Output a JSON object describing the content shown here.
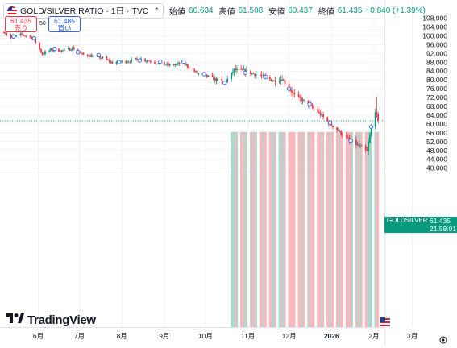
{
  "header": {
    "title": "GOLD/SILVER RATIO · 1日 · TVC",
    "open_label": "始値",
    "open_value": "60.634",
    "high_label": "高値",
    "high_value": "61.508",
    "low_label": "安値",
    "low_value": "60.437",
    "close_label": "終値",
    "close_value": "61.435",
    "change_value": "+0.840 (+1.39%)"
  },
  "trade": {
    "sell_price": "61.435",
    "sell_label": "売り",
    "spread": "50",
    "buy_price": "61.485",
    "buy_label": "買い"
  },
  "last_price": {
    "symbol": "GOLDSILVER",
    "value": "61.435",
    "countdown": "21:58:01"
  },
  "logo": "TradingView",
  "colors": {
    "up": "#089981",
    "down": "#f23645",
    "accent": "#2962ff"
  },
  "icons": [
    "us-flag-icon",
    "collapse-chevron-icon",
    "tradingview-logo-icon",
    "settings-gear-icon"
  ],
  "chart_data": {
    "type": "candlestick",
    "x_tick_labels": [
      "6月",
      "7月",
      "8月",
      "9月",
      "10月",
      "11月",
      "12月",
      "2026",
      "2月",
      "3月"
    ],
    "y_tick_labels": [
      "108.000",
      "104.000",
      "100.000",
      "96.000",
      "92.000",
      "88.000",
      "84.000",
      "80.000",
      "76.000",
      "72.000",
      "68.000",
      "64.000",
      "60.000",
      "56.000",
      "52.000",
      "48.000",
      "44.000",
      "40.000"
    ],
    "ylim": [
      38,
      110
    ],
    "anchors": [
      {
        "date": "2025-05-07",
        "close": 102.0
      },
      {
        "date": "2025-05-12",
        "close": 99.0
      },
      {
        "date": "2025-05-20",
        "close": 100.5
      },
      {
        "date": "2025-05-28",
        "close": 99.2
      },
      {
        "date": "2025-06-04",
        "close": 91.8
      },
      {
        "date": "2025-06-10",
        "close": 93.6
      },
      {
        "date": "2025-06-20",
        "close": 93.2
      },
      {
        "date": "2025-06-26",
        "close": 94.5
      },
      {
        "date": "2025-07-03",
        "close": 91.5
      },
      {
        "date": "2025-07-15",
        "close": 90.5
      },
      {
        "date": "2025-07-25",
        "close": 87.8
      },
      {
        "date": "2025-08-05",
        "close": 88.5
      },
      {
        "date": "2025-08-15",
        "close": 89.5
      },
      {
        "date": "2025-08-25",
        "close": 88.0
      },
      {
        "date": "2025-09-05",
        "close": 86.5
      },
      {
        "date": "2025-09-15",
        "close": 87.5
      },
      {
        "date": "2025-09-25",
        "close": 83.0
      },
      {
        "date": "2025-10-05",
        "close": 81.0
      },
      {
        "date": "2025-10-15",
        "close": 78.5
      },
      {
        "date": "2025-10-22",
        "close": 84.5
      },
      {
        "date": "2025-10-29",
        "close": 84.0
      },
      {
        "date": "2025-11-10",
        "close": 82.0
      },
      {
        "date": "2025-11-20",
        "close": 79.5
      },
      {
        "date": "2025-11-26",
        "close": 80.5
      },
      {
        "date": "2025-12-05",
        "close": 73.0
      },
      {
        "date": "2025-12-15",
        "close": 69.0
      },
      {
        "date": "2025-12-22",
        "close": 65.5
      },
      {
        "date": "2025-12-30",
        "close": 60.5
      },
      {
        "date": "2026-01-06",
        "close": 57.0
      },
      {
        "date": "2026-01-13",
        "close": 53.0
      },
      {
        "date": "2026-01-20",
        "close": 50.5
      },
      {
        "date": "2026-01-27",
        "close": 47.5
      },
      {
        "date": "2026-01-30",
        "close": 58.5
      },
      {
        "date": "2026-02-02",
        "close": 66.0
      },
      {
        "date": "2026-02-04",
        "close": 61.435
      }
    ]
  }
}
